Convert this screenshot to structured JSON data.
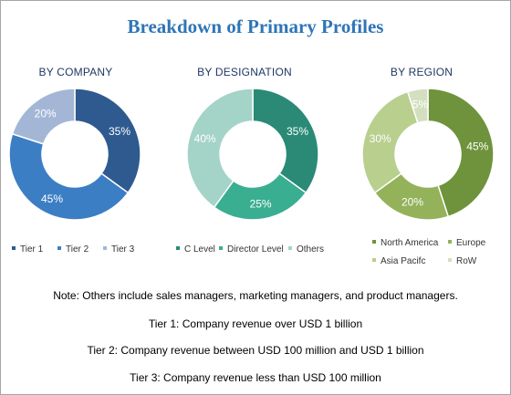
{
  "title": "Breakdown of Primary Profiles",
  "chart_data": [
    {
      "type": "pie",
      "donut": true,
      "title": "BY COMPANY",
      "categories": [
        "Tier 1",
        "Tier 2",
        "Tier 3"
      ],
      "values": [
        35,
        45,
        20
      ],
      "labels": [
        "35%",
        "45%",
        "20%"
      ],
      "colors": [
        "#2e5a8f",
        "#3b7ec4",
        "#a3b6d5"
      ]
    },
    {
      "type": "pie",
      "donut": true,
      "title": "BY DESIGNATION",
      "categories": [
        "C Level",
        "Director Level",
        "Others"
      ],
      "values": [
        35,
        25,
        40
      ],
      "labels": [
        "35%",
        "25%",
        "40%"
      ],
      "colors": [
        "#2a8a76",
        "#3aae91",
        "#a4d3c7"
      ]
    },
    {
      "type": "pie",
      "donut": true,
      "title": "BY REGION",
      "categories": [
        "North America",
        "Europe",
        "Asia Pacifc",
        "RoW"
      ],
      "values": [
        45,
        20,
        30,
        5
      ],
      "labels": [
        "45%",
        "20%",
        "30%",
        "5%"
      ],
      "colors": [
        "#6e933c",
        "#93b25a",
        "#b9cf8e",
        "#d4dfc0"
      ]
    }
  ],
  "notes": [
    "Note: Others include sales managers, marketing managers, and product managers.",
    "Tier 1: Company revenue over USD 1 billion",
    "Tier 2: Company revenue between USD 100 million and USD 1 billion",
    "Tier 3: Company revenue less than USD 100 million"
  ]
}
